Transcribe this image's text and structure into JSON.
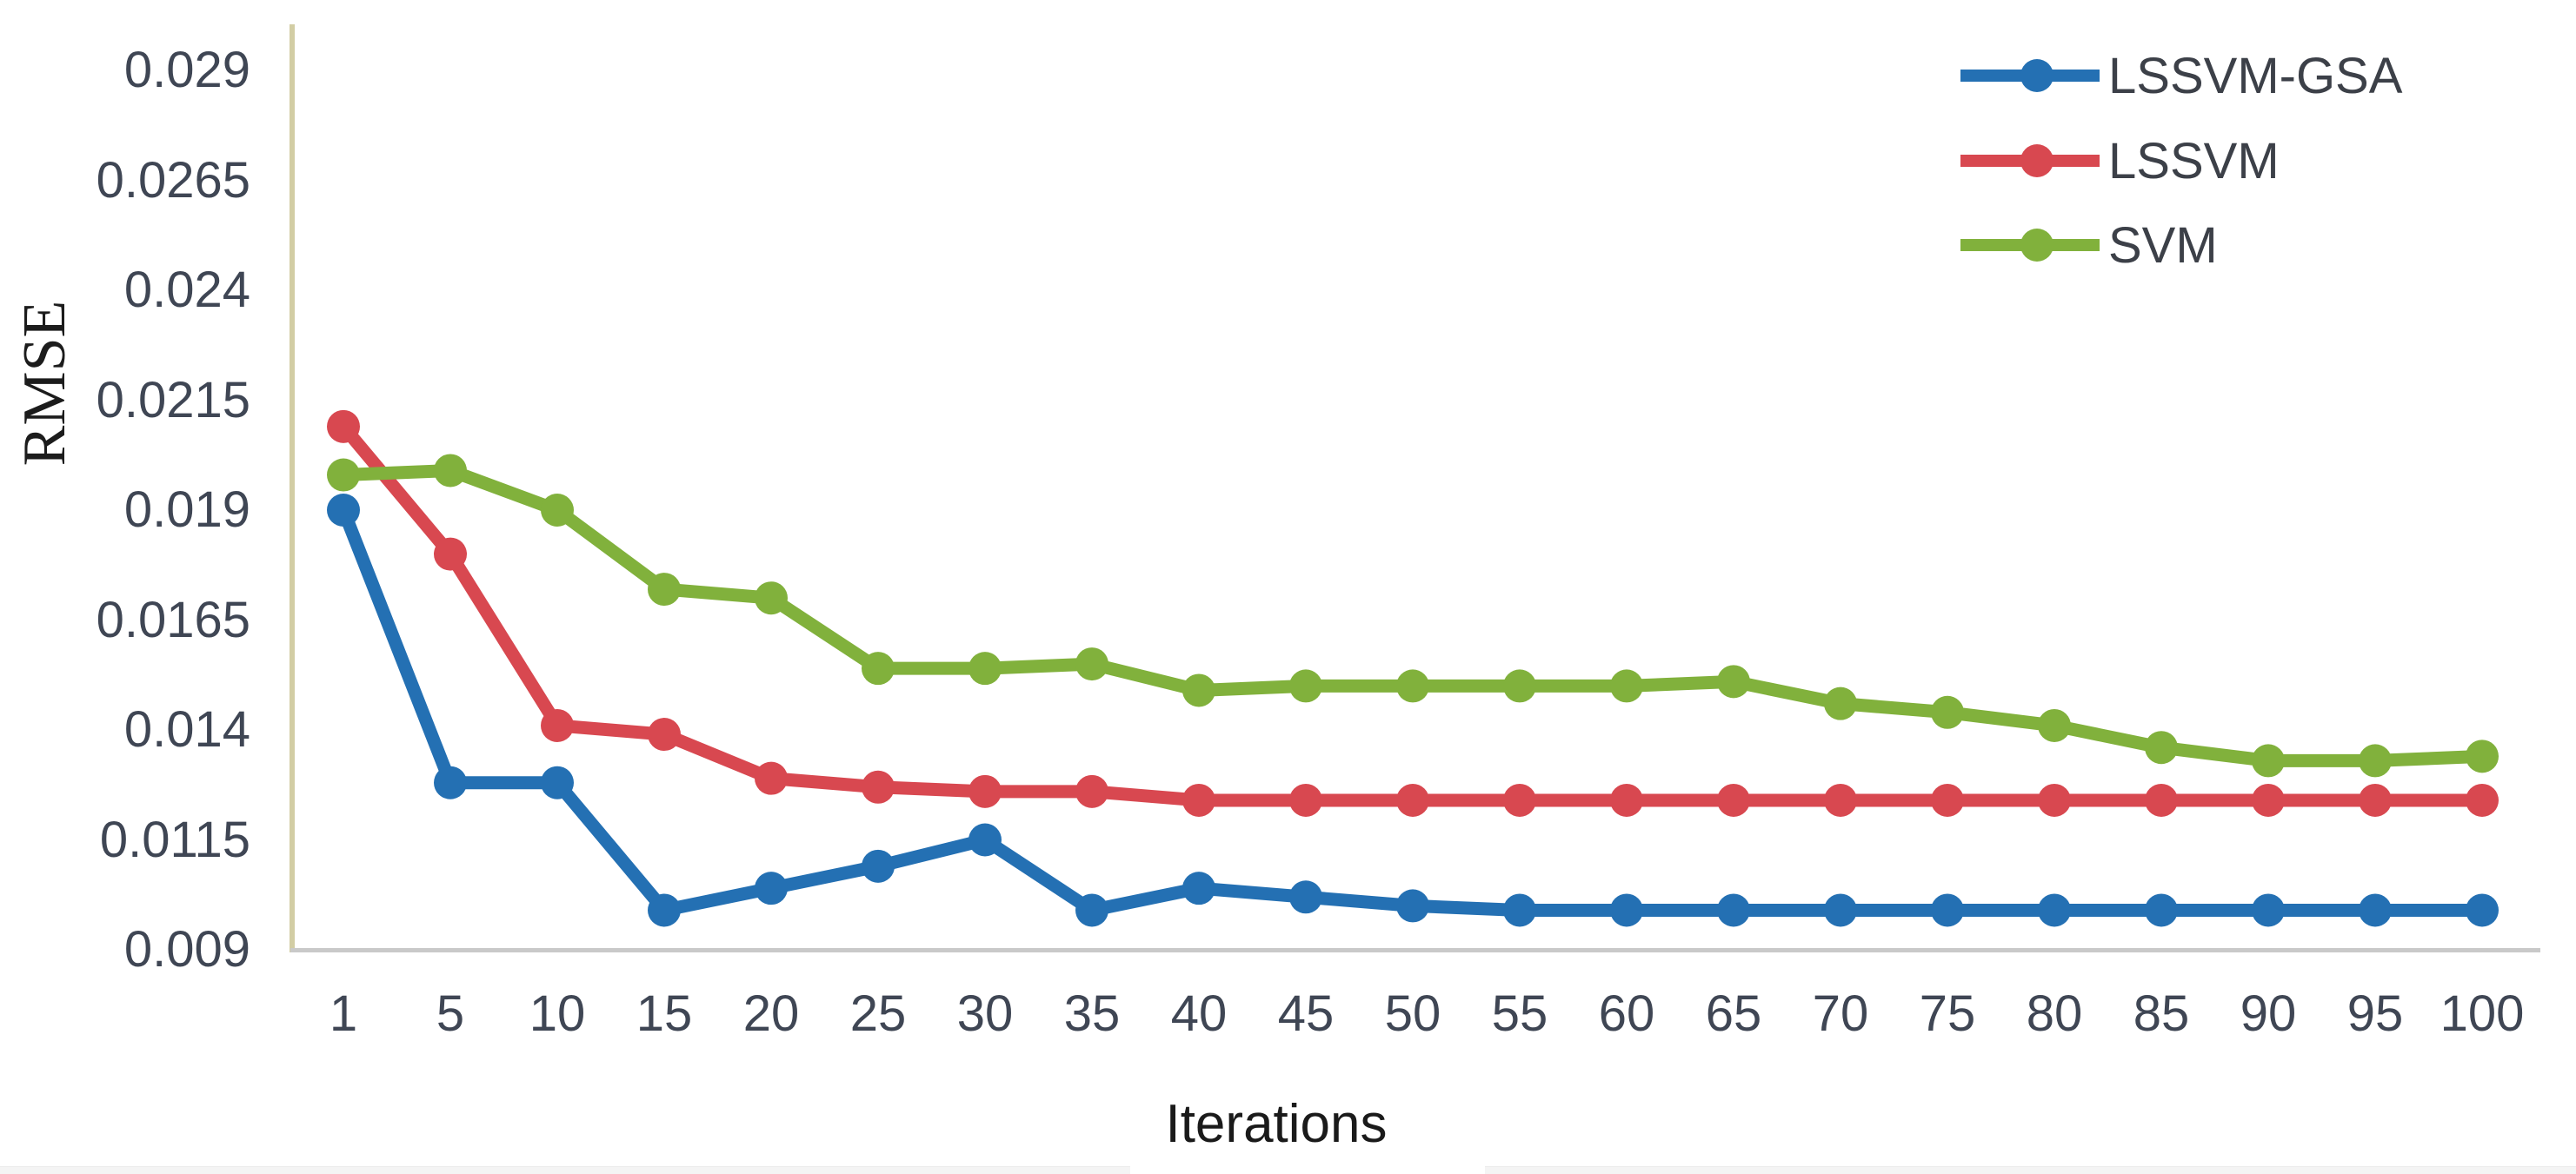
{
  "chart_data": {
    "type": "line",
    "title": "",
    "xlabel": "Iterations",
    "ylabel": "RMSE",
    "categories": [
      "1",
      "5",
      "10",
      "15",
      "20",
      "25",
      "30",
      "35",
      "40",
      "45",
      "50",
      "55",
      "60",
      "65",
      "70",
      "75",
      "80",
      "85",
      "90",
      "95",
      "100"
    ],
    "y_ticks": [
      "0.029",
      "0.0265",
      "0.024",
      "0.0215",
      "0.019",
      "0.0165",
      "0.014",
      "0.0115",
      "0.009"
    ],
    "ylim": [
      0.009,
      0.029
    ],
    "grid": false,
    "legend_position": "top-right",
    "marker": "circle",
    "axis_line_color": "#d2cda4",
    "baseline_color": "#c9c9c9",
    "tick_text_color": "#3f4654",
    "series": [
      {
        "name": "LSSVM-GSA",
        "color": "#2470b3",
        "values": [
          0.019,
          0.0128,
          0.0128,
          0.0099,
          0.0104,
          0.0109,
          0.0115,
          0.0099,
          0.0104,
          0.0102,
          0.01,
          0.0099,
          0.0099,
          0.0099,
          0.0099,
          0.0099,
          0.0099,
          0.0099,
          0.0099,
          0.0099,
          0.0099
        ]
      },
      {
        "name": "LSSVM",
        "color": "#d84850",
        "values": [
          0.0209,
          0.018,
          0.0141,
          0.0139,
          0.0129,
          0.0127,
          0.0126,
          0.0126,
          0.0124,
          0.0124,
          0.0124,
          0.0124,
          0.0124,
          0.0124,
          0.0124,
          0.0124,
          0.0124,
          0.0124,
          0.0124,
          0.0124,
          0.0124
        ]
      },
      {
        "name": "SVM",
        "color": "#81b13c",
        "values": [
          0.0198,
          0.0199,
          0.019,
          0.0172,
          0.017,
          0.0154,
          0.0154,
          0.0155,
          0.0149,
          0.015,
          0.015,
          0.015,
          0.015,
          0.0151,
          0.0146,
          0.0144,
          0.0141,
          0.0136,
          0.0133,
          0.0133,
          0.0134
        ]
      }
    ]
  }
}
